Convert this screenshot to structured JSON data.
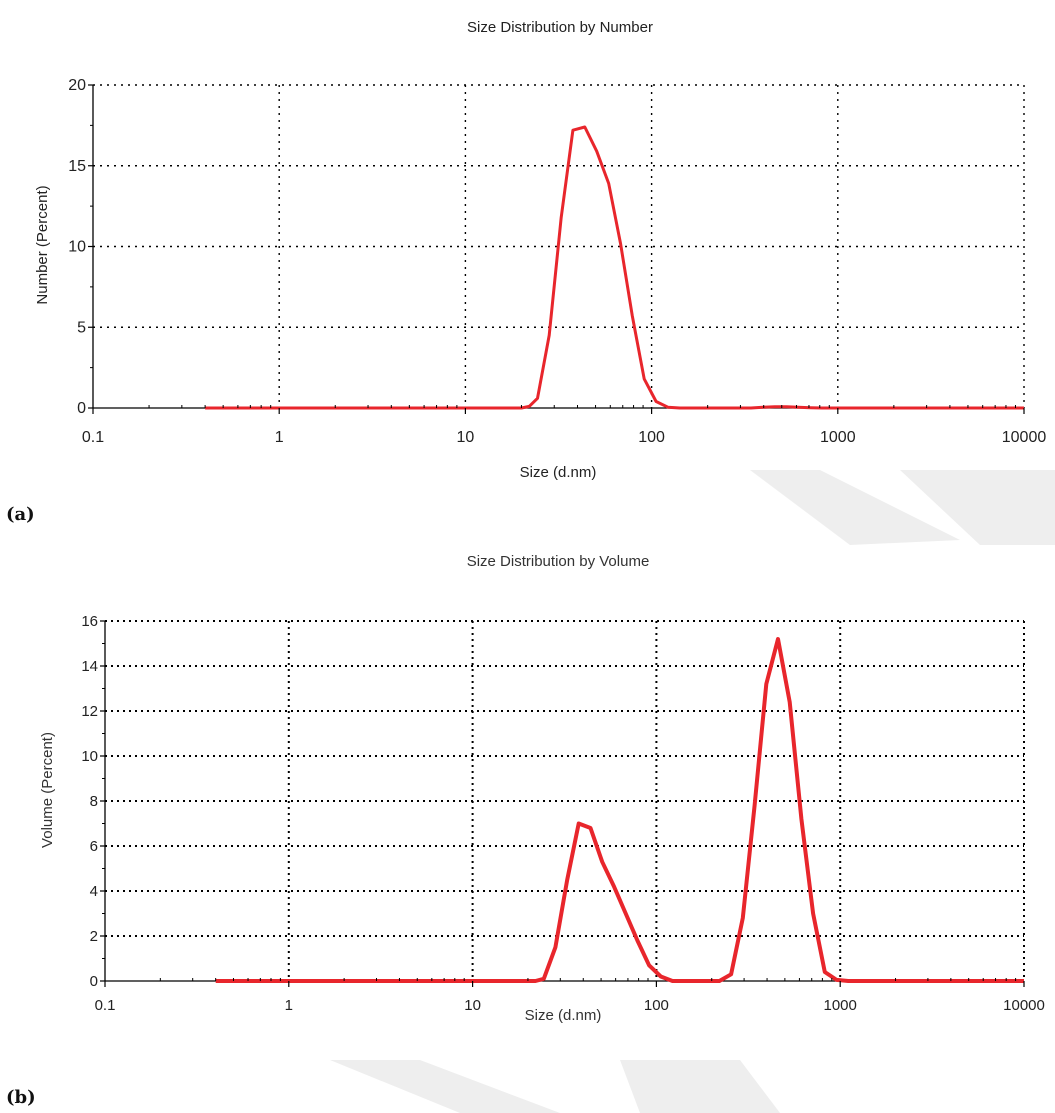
{
  "charts": [
    {
      "panel_label": "(a)",
      "chart_data": {
        "type": "line",
        "title": "Size Distribution by Number",
        "xlabel": "Size (d.nm)",
        "ylabel": "Number (Percent)",
        "xscale": "log",
        "xlim": [
          0.1,
          10000
        ],
        "ylim": [
          0,
          20
        ],
        "xticks": [
          0.1,
          1,
          10,
          100,
          1000,
          10000
        ],
        "xtick_labels": [
          "0.1",
          "1",
          "10",
          "100",
          "1000",
          "10000"
        ],
        "yticks": [
          0,
          5,
          10,
          15,
          20
        ],
        "ytick_labels": [
          "0",
          "5",
          "10",
          "15",
          "20"
        ],
        "grid": "dotted",
        "legend": "none",
        "series": [
          {
            "color": "#e8262c",
            "x": [
              0.4,
              0.5,
              1,
              2,
              5,
              10,
              15,
              20,
              22,
              24.4,
              28.2,
              32.7,
              37.8,
              43.8,
              50.7,
              58.8,
              68.1,
              78.8,
              91.3,
              105.7,
              122.4,
              141.8,
              164.2,
              190.1,
              220.2,
              255,
              295.3,
              342,
              396.1,
              458.7,
              531.2,
              615.1,
              712.4,
              825,
              955.4,
              1106,
              1281,
              1484,
              1718,
              1990,
              2305,
              2669,
              3091,
              3580,
              4145,
              4801,
              5560,
              6439,
              7456,
              8635,
              10000
            ],
            "y": [
              0,
              0,
              0,
              0,
              0,
              0,
              0,
              0,
              0.1,
              0.6,
              4.5,
              11.8,
              17.2,
              17.4,
              15.9,
              13.9,
              10.2,
              5.7,
              1.8,
              0.4,
              0.05,
              0,
              0,
              0,
              0,
              0,
              0,
              0,
              0.05,
              0.08,
              0.08,
              0.05,
              0.02,
              0,
              0,
              0,
              0,
              0,
              0,
              0,
              0,
              0,
              0,
              0,
              0,
              0,
              0,
              0,
              0,
              0,
              0
            ]
          }
        ]
      }
    },
    {
      "panel_label": "(b)",
      "chart_data": {
        "type": "line",
        "title": "Size Distribution by Volume",
        "xlabel": "Size (d.nm)",
        "ylabel": "Volume (Percent)",
        "xscale": "log",
        "xlim": [
          0.1,
          10000
        ],
        "ylim": [
          0,
          16
        ],
        "xticks": [
          0.1,
          1,
          10,
          100,
          1000,
          10000
        ],
        "xtick_labels": [
          "0.1",
          "1",
          "10",
          "100",
          "1000",
          "10000"
        ],
        "yticks": [
          0,
          2,
          4,
          6,
          8,
          10,
          12,
          14,
          16
        ],
        "ytick_labels": [
          "0",
          "2",
          "4",
          "6",
          "8",
          "10",
          "12",
          "14",
          "16"
        ],
        "grid": "dotted",
        "legend": "none",
        "series": [
          {
            "color": "#e8262c",
            "x": [
              0.4,
              1,
              5,
              10,
              20,
              22,
              24.4,
              28.2,
              32.7,
              37.8,
              43.8,
              50.7,
              58.8,
              68.1,
              78.8,
              91.3,
              105.7,
              122.4,
              141.8,
              164.2,
              190.1,
              220.2,
              255,
              295.3,
              342,
              396.1,
              458.7,
              531.2,
              615.1,
              712.4,
              825,
              955.4,
              1106,
              1281,
              1484,
              1718,
              2000,
              5000,
              10000
            ],
            "y": [
              0,
              0,
              0,
              0,
              0,
              0,
              0.1,
              1.5,
              4.5,
              7.0,
              6.8,
              5.3,
              4.2,
              3.0,
              1.8,
              0.7,
              0.2,
              0,
              0,
              0,
              0,
              0,
              0.3,
              2.8,
              7.8,
              13.2,
              15.2,
              12.4,
              7.2,
              3.0,
              0.4,
              0.05,
              0,
              0,
              0,
              0,
              0,
              0,
              0
            ]
          }
        ]
      }
    }
  ]
}
